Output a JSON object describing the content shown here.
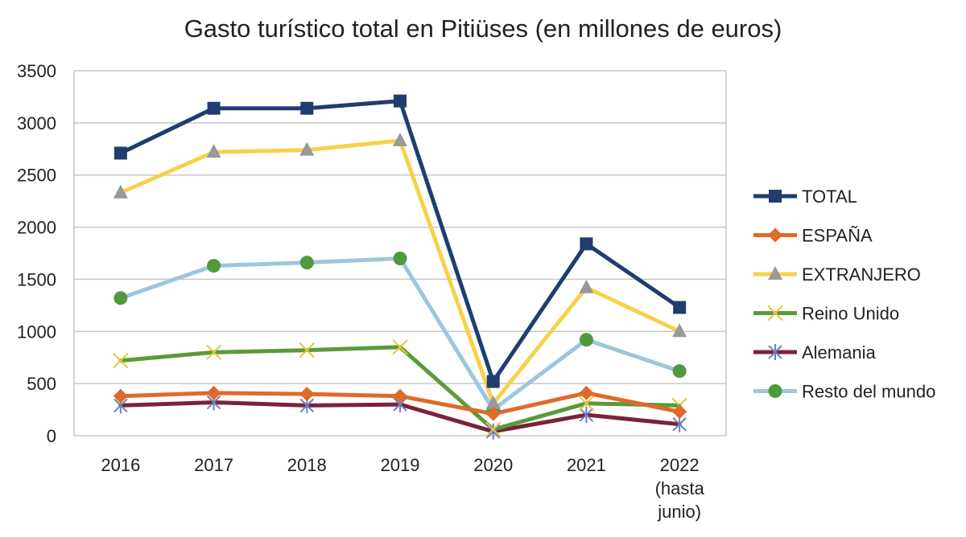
{
  "chart_data": {
    "type": "line",
    "title": "Gasto turístico total en Pitiüses (en millones de euros)",
    "xlabel": "",
    "ylabel": "",
    "ylim": [
      0,
      3500
    ],
    "yticks": [
      0,
      500,
      1000,
      1500,
      2000,
      2500,
      3000,
      3500
    ],
    "grid": true,
    "legend_position": "right",
    "categories": [
      [
        "2016"
      ],
      [
        "2017"
      ],
      [
        "2018"
      ],
      [
        "2019"
      ],
      [
        "2020"
      ],
      [
        "2021"
      ],
      [
        "2022",
        "(hasta",
        "junio)"
      ]
    ],
    "series": [
      {
        "name": "TOTAL",
        "color": "#1f3d6e",
        "marker": "square",
        "values": [
          2710,
          3140,
          3140,
          3210,
          520,
          1840,
          1230
        ]
      },
      {
        "name": "ESPAÑA",
        "color": "#e06a2a",
        "marker": "diamond",
        "values": [
          380,
          410,
          400,
          380,
          210,
          410,
          230
        ]
      },
      {
        "name": "EXTRANJERO",
        "color": "#f7d14a",
        "marker": "triangle",
        "values": [
          2330,
          2720,
          2740,
          2830,
          310,
          1420,
          1000
        ]
      },
      {
        "name": "Reino Unido",
        "color": "#5a9a3a",
        "marker": "x",
        "values": [
          720,
          800,
          820,
          850,
          60,
          310,
          290
        ]
      },
      {
        "name": "Alemania",
        "color": "#7a2238",
        "marker": "star",
        "values": [
          290,
          320,
          290,
          300,
          40,
          200,
          110
        ]
      },
      {
        "name": "Resto del mundo",
        "color": "#9cc6e0",
        "marker": "circle",
        "values": [
          1320,
          1630,
          1660,
          1700,
          250,
          920,
          620
        ]
      }
    ]
  }
}
